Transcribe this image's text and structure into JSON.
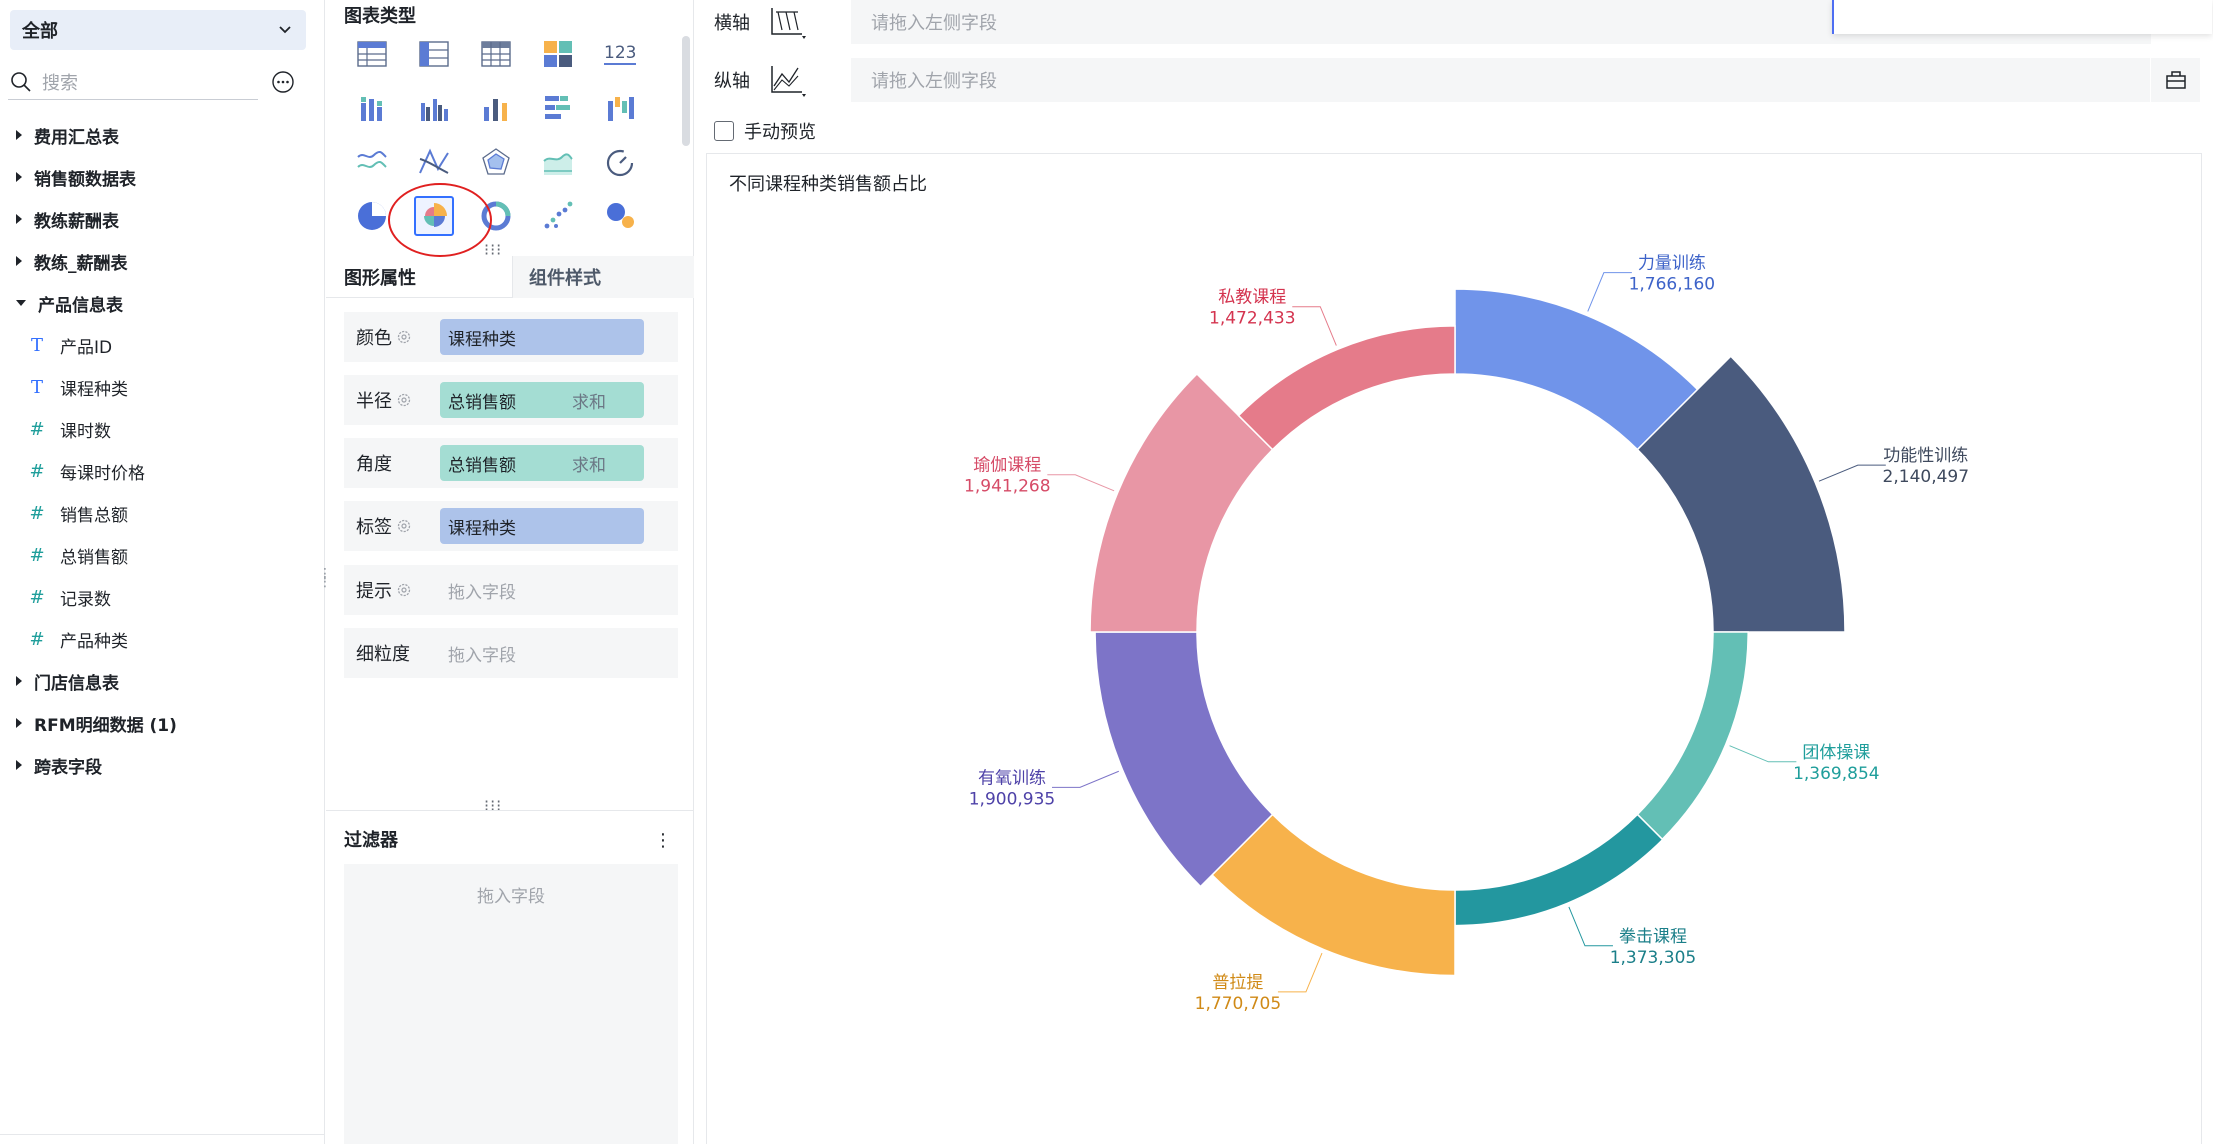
{
  "left": {
    "scope": "全部",
    "search_placeholder": "搜索",
    "tree": [
      {
        "type": "group",
        "label": "费用汇总表"
      },
      {
        "type": "group",
        "label": "销售额数据表"
      },
      {
        "type": "group",
        "label": "教练薪酬表"
      },
      {
        "type": "group",
        "label": "教练_薪酬表"
      },
      {
        "type": "group",
        "label": "产品信息表",
        "open": true
      },
      {
        "type": "field",
        "ftype": "T",
        "label": "产品ID"
      },
      {
        "type": "field",
        "ftype": "T",
        "label": "课程种类"
      },
      {
        "type": "field",
        "ftype": "#",
        "label": "课时数"
      },
      {
        "type": "field",
        "ftype": "#",
        "label": "每课时价格"
      },
      {
        "type": "field",
        "ftype": "#",
        "label": "销售总额"
      },
      {
        "type": "field",
        "ftype": "#",
        "label": "总销售额"
      },
      {
        "type": "field",
        "ftype": "#*",
        "label": "记录数"
      },
      {
        "type": "field",
        "ftype": "#*",
        "label": "产品种类"
      },
      {
        "type": "group",
        "label": "门店信息表"
      },
      {
        "type": "group",
        "label": "RFM明细数据 (1)"
      },
      {
        "type": "group",
        "label": "跨表字段"
      }
    ]
  },
  "mid": {
    "chart_types_title": "图表类型",
    "selected_chart_type": "rose-pie-icon",
    "tabs": {
      "active": "图形属性",
      "inactive": "组件样式"
    },
    "props": {
      "color": {
        "label": "颜色",
        "value": "课程种类"
      },
      "radius": {
        "label": "半径",
        "value": "总销售额",
        "agg": "求和"
      },
      "angle": {
        "label": "角度",
        "value": "总销售额",
        "agg": "求和"
      },
      "tag": {
        "label": "标签",
        "value": "课程种类"
      },
      "tip": {
        "label": "提示",
        "placeholder": "拖入字段"
      },
      "granularity": {
        "label": "细粒度",
        "placeholder": "拖入字段"
      }
    },
    "filter": {
      "title": "过滤器",
      "placeholder": "拖入字段"
    }
  },
  "axes": {
    "x": {
      "label": "横轴",
      "placeholder": "请拖入左侧字段"
    },
    "y": {
      "label": "纵轴",
      "placeholder": "请拖入左侧字段"
    }
  },
  "manual_preview": "手动预览",
  "colors": {
    "accent": "#3370ff",
    "pill_blue": "#adc3ea",
    "pill_teal": "#a4ddd3",
    "highlight": "#e02020"
  },
  "chart_data": {
    "type": "pie",
    "variant": "rose-donut",
    "title": "不同课程种类销售额占比",
    "categories": [
      "力量训练",
      "功能性训练",
      "团体操课",
      "拳击课程",
      "普拉提",
      "有氧训练",
      "瑜伽课程",
      "私教课程"
    ],
    "values": [
      1766160,
      2140497,
      1369854,
      1373305,
      1770705,
      1900935,
      1941268,
      1472433
    ],
    "value_labels": [
      "1,766,160",
      "2,140,497",
      "1,369,854",
      "1,373,305",
      "1,770,705",
      "1,900,935",
      "1,941,268",
      "1,472,433"
    ],
    "colors": [
      "#7094ea",
      "#4a5b7e",
      "#63bfb5",
      "#23979f",
      "#f7b24b",
      "#7d74c8",
      "#e896a5",
      "#e57b8a"
    ],
    "label_colors": [
      "#3d63c9",
      "#3f4a5e",
      "#1f9e9b",
      "#1b7f89",
      "#d08a17",
      "#4e42a8",
      "#d64b67",
      "#d4344f"
    ],
    "legend": "none"
  }
}
